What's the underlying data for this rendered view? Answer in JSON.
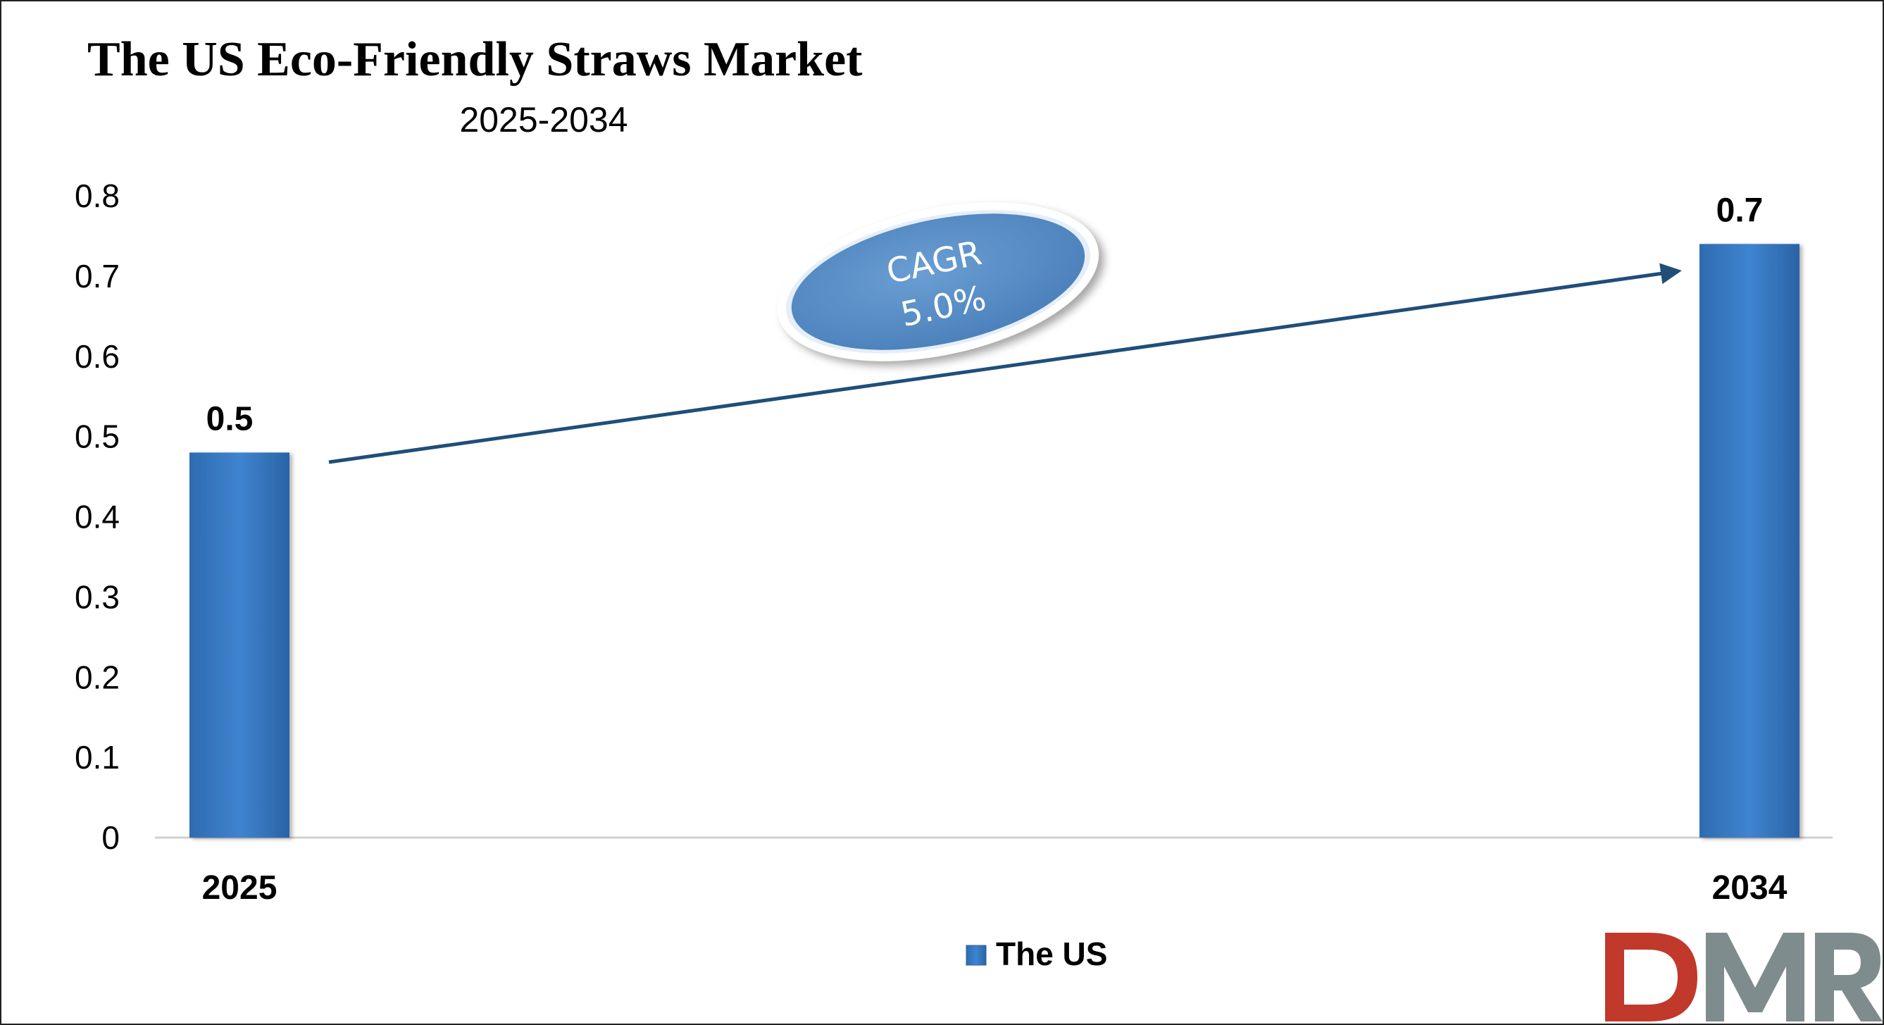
{
  "chart_data": {
    "type": "bar",
    "title": "The US Eco-Friendly Straws Market",
    "subtitle": "2025-2034",
    "categories": [
      "2025",
      "2034"
    ],
    "series": [
      {
        "name": "The US",
        "values": [
          0.48,
          0.74
        ],
        "data_labels": [
          "0.5",
          "0.7"
        ]
      }
    ],
    "ylim": [
      0,
      0.8
    ],
    "yticks": [
      "0",
      "0.1",
      "0.2",
      "0.3",
      "0.4",
      "0.5",
      "0.6",
      "0.7",
      "0.8"
    ],
    "grid": false,
    "legend_position": "bottom",
    "annotation": {
      "line1": "CAGR",
      "line2": "5.0%"
    },
    "colors": {
      "bar": "#3a7cc4",
      "arrow": "#1f4e79",
      "badge": "#5b8fc6"
    }
  },
  "logo": {
    "text": "DMR",
    "colors": {
      "d": "#c0392b",
      "mr": "#7f8c8d"
    }
  }
}
